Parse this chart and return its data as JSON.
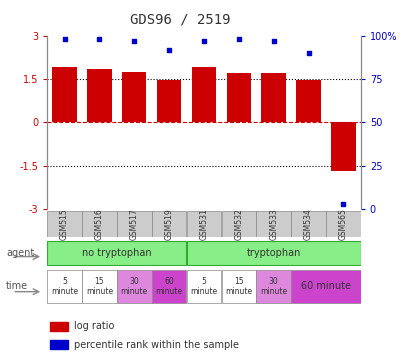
{
  "title": "GDS96 / 2519",
  "samples": [
    "GSM515",
    "GSM516",
    "GSM517",
    "GSM519",
    "GSM531",
    "GSM532",
    "GSM533",
    "GSM534",
    "GSM565"
  ],
  "log_ratios": [
    1.9,
    1.85,
    1.75,
    1.45,
    1.9,
    1.7,
    1.7,
    1.45,
    -1.7
  ],
  "percentile_ranks": [
    98,
    98,
    97,
    92,
    97,
    98,
    97,
    90,
    3
  ],
  "ylim": [
    -3,
    3
  ],
  "yticks_left": [
    -3,
    -1.5,
    0,
    1.5,
    3
  ],
  "yticks_left_labels": [
    "-3",
    "-1.5",
    "0",
    "1.5",
    "3"
  ],
  "yticks_right": [
    0,
    25,
    50,
    75,
    100
  ],
  "yticks_right_labels": [
    "0",
    "25",
    "50",
    "75",
    "100%"
  ],
  "bar_color": "#cc0000",
  "dot_color": "#0000cc",
  "hline_red_color": "#cc0000",
  "hline_black_color": "#000000",
  "gsm_bg_color": "#cccccc",
  "gsm_border_color": "#888888",
  "left_label_color": "#cc0000",
  "right_label_color": "#0000cc",
  "title_color": "#333333",
  "agent_green": "#88ee88",
  "agent_border": "#33aa33",
  "time_white": "#ffffff",
  "time_pink": "#dd88dd",
  "time_magenta": "#cc44cc",
  "legend_red_label": "log ratio",
  "legend_blue_label": "percentile rank within the sample",
  "agent_row_label": "agent",
  "time_row_label": "time",
  "agent_labels": [
    "no tryptophan",
    "tryptophan"
  ],
  "time_info": [
    [
      0,
      1,
      "#ffffff",
      "5\nminute"
    ],
    [
      1,
      2,
      "#ffffff",
      "15\nminute"
    ],
    [
      2,
      3,
      "#dd88dd",
      "30\nminute"
    ],
    [
      3,
      4,
      "#cc44cc",
      "60\nminute"
    ],
    [
      4,
      5,
      "#ffffff",
      "5\nminute"
    ],
    [
      5,
      6,
      "#ffffff",
      "15\nminute"
    ],
    [
      6,
      7,
      "#dd88dd",
      "30\nminute"
    ],
    [
      7,
      9,
      "#cc44cc",
      "60 minute"
    ]
  ]
}
